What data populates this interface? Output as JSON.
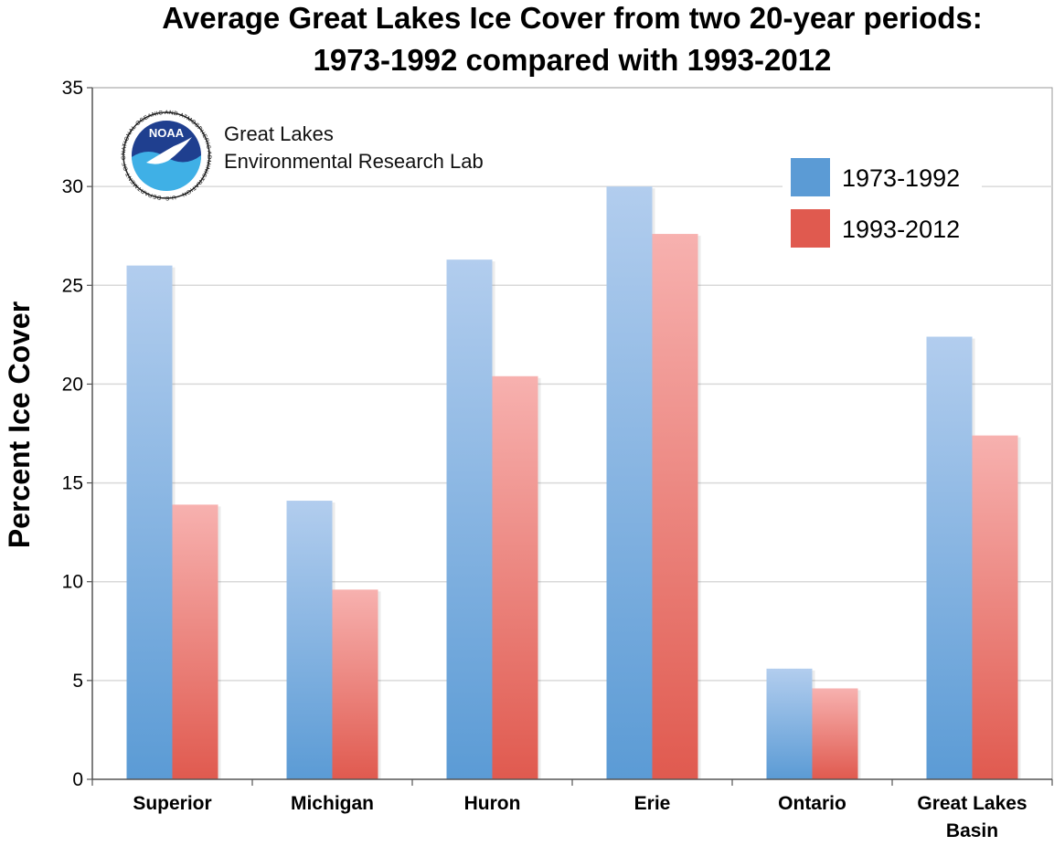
{
  "chart_data": {
    "type": "bar",
    "title_lines": [
      "Average Great Lakes Ice Cover from two 20-year periods:",
      "1973-1992 compared with 1993-2012"
    ],
    "ylabel": "Percent Ice Cover",
    "xlabel": "",
    "ylim": [
      0,
      35
    ],
    "yticks": [
      0,
      5,
      10,
      15,
      20,
      25,
      30,
      35
    ],
    "categories": [
      [
        "Superior"
      ],
      [
        "Michigan"
      ],
      [
        "Huron"
      ],
      [
        "Erie"
      ],
      [
        "Ontario"
      ],
      [
        "Great Lakes",
        "Basin"
      ]
    ],
    "series": [
      {
        "name": "1973-1992",
        "values": [
          26.0,
          14.1,
          26.3,
          30.0,
          5.6,
          22.4
        ],
        "color": "#5b9bd5",
        "color_light": "#b2cdee"
      },
      {
        "name": "1993-2012",
        "values": [
          13.9,
          9.6,
          20.4,
          27.6,
          4.6,
          17.4
        ],
        "color": "#e05a4f",
        "color_light": "#f7b1af"
      }
    ],
    "grid": true,
    "legend_position": "top-right"
  },
  "org": {
    "logo_text": "NOAA",
    "logo_ring_text": "NATIONAL OCEANIC AND ATMOSPHERIC ADMINISTRATION · U.S. DEPARTMENT OF COMMERCE",
    "line1": "Great Lakes",
    "line2": "Environmental Research Lab"
  }
}
